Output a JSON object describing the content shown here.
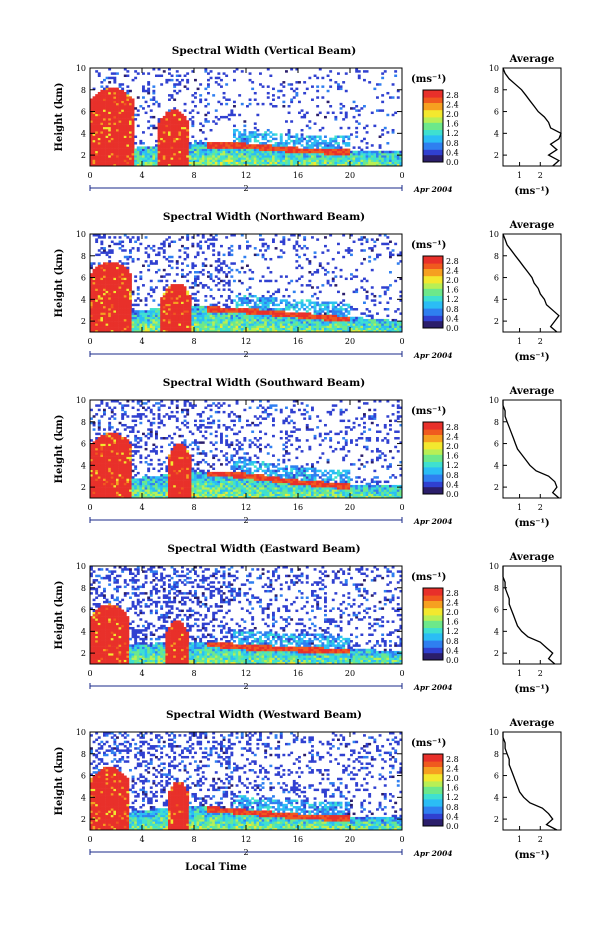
{
  "figure": {
    "x_axis_label": "Local Time",
    "date_label": "Apr 2004",
    "date_marker": "2",
    "y_axis_label": "Height (km)",
    "average_title": "Average",
    "colorbar_unit": "(ms⁻¹)",
    "average_unit": "(ms⁻¹)"
  },
  "colors": {
    "colormap": [
      "#2b1e6b",
      "#3040d0",
      "#2f7ff0",
      "#2bbdf5",
      "#3fe0d0",
      "#6de88a",
      "#b8ef55",
      "#f3e82e",
      "#f6a020",
      "#f05a1e",
      "#e8302a"
    ],
    "axis": "#000000",
    "date_bar": "#1a2a8a"
  },
  "chart_data": [
    {
      "type": "heatmap",
      "title": "Spectral Width (Vertical Beam)",
      "xlim": [
        0,
        24
      ],
      "ylim": [
        1,
        10
      ],
      "x_ticks": [
        "0",
        "4",
        "8",
        "12",
        "16",
        "20",
        "0"
      ],
      "y_ticks": [
        "2",
        "4",
        "6",
        "8",
        "10"
      ],
      "colorbar": {
        "unit": "(ms⁻¹)",
        "range": [
          0,
          3.0
        ],
        "tick_labels": [
          "0.0",
          "0.4",
          "0.8",
          "1.2",
          "1.6",
          "2.0",
          "2.4",
          "2.8"
        ]
      },
      "pattern": {
        "wide_block_0": [
          0,
          3.4,
          8.2
        ],
        "wide_block_1": [
          5.3,
          7.6,
          6.2
        ],
        "layer_top": [
          2.2,
          2.4,
          2.8,
          3.0,
          3.1,
          3.2,
          3.1,
          2.9,
          2.7,
          2.6,
          2.5,
          2.4,
          2.3
        ],
        "noise": 0.25
      },
      "profile": {
        "title": "Average",
        "unit": "(ms⁻¹)",
        "xlim": [
          0.2,
          3.0
        ],
        "x_ticks": [
          "1",
          "2"
        ],
        "y_ticks": [
          "2",
          "4",
          "6",
          "8",
          "10"
        ],
        "height": [
          1.0,
          1.5,
          2.0,
          2.5,
          3.0,
          3.5,
          4.0,
          4.5,
          5.0,
          5.5,
          6.0,
          6.5,
          7.0,
          7.5,
          8.0,
          8.5,
          9.0,
          9.5,
          10.0
        ],
        "width": [
          2.6,
          2.9,
          2.4,
          2.8,
          2.5,
          2.9,
          3.0,
          2.5,
          2.4,
          2.2,
          1.9,
          1.7,
          1.5,
          1.3,
          1.1,
          0.8,
          0.5,
          0.3,
          0.2
        ]
      }
    },
    {
      "type": "heatmap",
      "title": "Spectral Width (Northward Beam)",
      "xlim": [
        0,
        24
      ],
      "ylim": [
        1,
        10
      ],
      "x_ticks": [
        "0",
        "4",
        "8",
        "12",
        "16",
        "20",
        "0"
      ],
      "y_ticks": [
        "2",
        "4",
        "6",
        "8",
        "10"
      ],
      "colorbar": {
        "unit": "(ms⁻¹)",
        "range": [
          0,
          3.0
        ],
        "tick_labels": [
          "0.0",
          "0.4",
          "0.8",
          "1.2",
          "1.6",
          "2.0",
          "2.4",
          "2.8"
        ]
      },
      "pattern": {
        "wide_block_0": [
          0,
          3.2,
          7.5
        ],
        "wide_block_1": [
          5.5,
          7.8,
          5.5
        ],
        "layer_top": [
          2.4,
          2.6,
          3.0,
          3.3,
          3.4,
          3.3,
          3.2,
          3.0,
          2.8,
          2.6,
          2.4,
          2.2,
          2.0
        ],
        "noise": 0.4
      },
      "profile": {
        "title": "Average",
        "unit": "(ms⁻¹)",
        "xlim": [
          0.2,
          3.0
        ],
        "x_ticks": [
          "1",
          "2"
        ],
        "y_ticks": [
          "2",
          "4",
          "6",
          "8",
          "10"
        ],
        "height": [
          1.0,
          1.5,
          2.0,
          2.5,
          3.0,
          3.5,
          4.0,
          4.5,
          5.0,
          5.5,
          6.0,
          6.5,
          7.0,
          7.5,
          8.0,
          8.5,
          9.0,
          9.5,
          10.0
        ],
        "width": [
          2.8,
          2.5,
          2.7,
          2.9,
          2.6,
          2.3,
          2.2,
          2.0,
          1.9,
          1.7,
          1.6,
          1.4,
          1.2,
          1.0,
          0.8,
          0.6,
          0.4,
          0.3,
          0.2
        ]
      }
    },
    {
      "type": "heatmap",
      "title": "Spectral Width (Southward Beam)",
      "xlim": [
        0,
        24
      ],
      "ylim": [
        1,
        10
      ],
      "x_ticks": [
        "0",
        "4",
        "8",
        "12",
        "16",
        "20",
        "0"
      ],
      "y_ticks": [
        "2",
        "4",
        "6",
        "8",
        "10"
      ],
      "colorbar": {
        "unit": "(ms⁻¹)",
        "range": [
          0,
          3.0
        ],
        "tick_labels": [
          "0.0",
          "0.4",
          "0.8",
          "1.2",
          "1.6",
          "2.0",
          "2.4",
          "2.8"
        ]
      },
      "pattern": {
        "wide_block_0": [
          0,
          3.3,
          7.0
        ],
        "wide_block_1": [
          6.0,
          7.8,
          6.0
        ],
        "layer_top": [
          2.3,
          2.5,
          2.9,
          3.2,
          3.4,
          3.5,
          3.3,
          3.0,
          2.7,
          2.5,
          2.3,
          2.2,
          2.1
        ],
        "noise": 0.45
      },
      "profile": {
        "title": "Average",
        "unit": "(ms⁻¹)",
        "xlim": [
          0.2,
          3.0
        ],
        "x_ticks": [
          "1",
          "2"
        ],
        "y_ticks": [
          "2",
          "4",
          "6",
          "8",
          "10"
        ],
        "height": [
          1.0,
          1.5,
          2.0,
          2.5,
          3.0,
          3.5,
          4.0,
          4.5,
          5.0,
          5.5,
          6.0,
          6.5,
          7.0,
          7.5,
          8.0,
          8.5,
          9.0,
          9.5,
          10.0
        ],
        "width": [
          2.9,
          2.6,
          2.8,
          2.7,
          2.4,
          1.8,
          1.5,
          1.3,
          1.1,
          0.9,
          0.8,
          0.7,
          0.6,
          0.5,
          0.4,
          0.3,
          0.3,
          0.2,
          0.2
        ]
      }
    },
    {
      "type": "heatmap",
      "title": "Spectral Width (Eastward Beam)",
      "xlim": [
        0,
        24
      ],
      "ylim": [
        1,
        10
      ],
      "x_ticks": [
        "0",
        "4",
        "8",
        "12",
        "16",
        "20",
        "0"
      ],
      "y_ticks": [
        "2",
        "4",
        "6",
        "8",
        "10"
      ],
      "colorbar": {
        "unit": "(ms⁻¹)",
        "range": [
          0,
          3.0
        ],
        "tick_labels": [
          "0.0",
          "0.4",
          "0.8",
          "1.2",
          "1.6",
          "2.0",
          "2.4",
          "2.8"
        ]
      },
      "pattern": {
        "wide_block_0": [
          0,
          3.0,
          6.5
        ],
        "wide_block_1": [
          5.8,
          7.6,
          5.0
        ],
        "layer_top": [
          2.4,
          2.6,
          2.8,
          3.0,
          3.1,
          3.0,
          2.8,
          2.7,
          2.6,
          2.5,
          2.4,
          2.3,
          2.2
        ],
        "noise": 0.6
      },
      "profile": {
        "title": "Average",
        "unit": "(ms⁻¹)",
        "xlim": [
          0.2,
          3.0
        ],
        "x_ticks": [
          "1",
          "2"
        ],
        "y_ticks": [
          "2",
          "4",
          "6",
          "8",
          "10"
        ],
        "height": [
          1.0,
          1.5,
          2.0,
          2.5,
          3.0,
          3.5,
          4.0,
          4.5,
          5.0,
          5.5,
          6.0,
          6.5,
          7.0,
          7.5,
          8.0,
          8.5,
          9.0,
          9.5,
          10.0
        ],
        "width": [
          2.7,
          2.4,
          2.6,
          2.3,
          2.0,
          1.4,
          1.1,
          0.9,
          0.8,
          0.7,
          0.6,
          0.5,
          0.5,
          0.4,
          0.3,
          0.3,
          0.2,
          0.2,
          0.2
        ]
      }
    },
    {
      "type": "heatmap",
      "title": "Spectral Width (Westward Beam)",
      "xlim": [
        0,
        24
      ],
      "ylim": [
        1,
        10
      ],
      "x_ticks": [
        "0",
        "4",
        "8",
        "12",
        "16",
        "20",
        "0"
      ],
      "y_ticks": [
        "2",
        "4",
        "6",
        "8",
        "10"
      ],
      "colorbar": {
        "unit": "(ms⁻¹)",
        "range": [
          0,
          3.0
        ],
        "tick_labels": [
          "0.0",
          "0.4",
          "0.8",
          "1.2",
          "1.6",
          "2.0",
          "2.4",
          "2.8"
        ]
      },
      "pattern": {
        "wide_block_0": [
          0,
          3.0,
          6.8
        ],
        "wide_block_1": [
          6.0,
          7.6,
          5.5
        ],
        "layer_top": [
          2.3,
          2.5,
          2.8,
          3.0,
          3.2,
          3.1,
          2.9,
          2.7,
          2.5,
          2.4,
          2.3,
          2.2,
          2.1
        ],
        "noise": 0.55
      },
      "profile": {
        "title": "Average",
        "unit": "(ms⁻¹)",
        "xlim": [
          0.2,
          3.0
        ],
        "x_ticks": [
          "1",
          "2"
        ],
        "y_ticks": [
          "2",
          "4",
          "6",
          "8",
          "10"
        ],
        "height": [
          1.0,
          1.5,
          2.0,
          2.5,
          3.0,
          3.5,
          4.0,
          4.5,
          5.0,
          5.5,
          6.0,
          6.5,
          7.0,
          7.5,
          8.0,
          8.5,
          9.0,
          9.5,
          10.0
        ],
        "width": [
          2.8,
          2.3,
          2.6,
          2.4,
          2.1,
          1.5,
          1.2,
          1.0,
          0.9,
          0.8,
          0.7,
          0.6,
          0.5,
          0.5,
          0.4,
          0.3,
          0.3,
          0.2,
          0.2
        ]
      }
    }
  ]
}
